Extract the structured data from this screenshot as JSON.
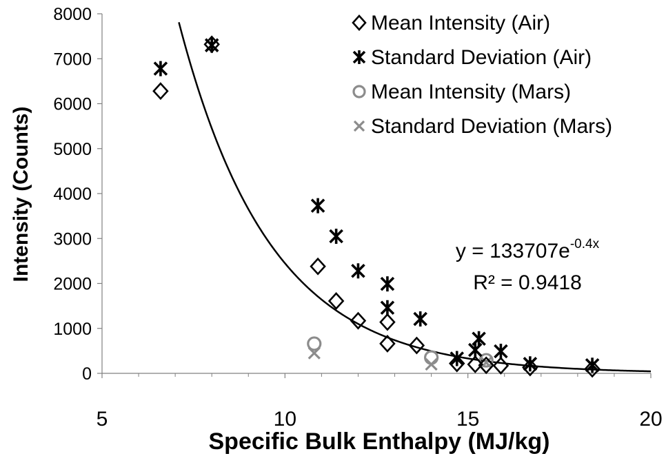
{
  "chart_data": {
    "type": "scatter",
    "title": "",
    "xlabel": "Specific Bulk Enthalpy (MJ/kg)",
    "ylabel": "Intensity (Counts)",
    "xlim": [
      5,
      20
    ],
    "ylim": [
      0,
      8000
    ],
    "x_ticks": [
      "5",
      "10",
      "15",
      "20"
    ],
    "y_ticks": [
      "0",
      "1000",
      "2000",
      "3000",
      "4000",
      "5000",
      "6000",
      "7000",
      "8000"
    ],
    "grid": false,
    "legend": "top-right",
    "series": [
      {
        "name": "Mean Intensity (Air)",
        "marker": "diamond",
        "color": "#000000",
        "points": [
          [
            6.6,
            6280
          ],
          [
            8.0,
            7320
          ],
          [
            10.9,
            2380
          ],
          [
            11.4,
            1610
          ],
          [
            12.0,
            1170
          ],
          [
            12.8,
            1140
          ],
          [
            12.8,
            660
          ],
          [
            13.6,
            620
          ],
          [
            14.7,
            220
          ],
          [
            15.2,
            200
          ],
          [
            15.5,
            180
          ],
          [
            15.9,
            170
          ],
          [
            16.7,
            130
          ],
          [
            18.4,
            100
          ]
        ]
      },
      {
        "name": "Standard Deviation (Air)",
        "marker": "asterisk",
        "color": "#000000",
        "points": [
          [
            6.6,
            6780
          ],
          [
            8.0,
            7300
          ],
          [
            10.9,
            3730
          ],
          [
            11.4,
            3050
          ],
          [
            12.0,
            2280
          ],
          [
            12.8,
            1990
          ],
          [
            12.8,
            1460
          ],
          [
            13.7,
            1210
          ],
          [
            14.7,
            330
          ],
          [
            15.2,
            520
          ],
          [
            15.3,
            770
          ],
          [
            15.9,
            490
          ],
          [
            16.7,
            210
          ],
          [
            18.4,
            180
          ]
        ]
      },
      {
        "name": "Mean Intensity (Mars)",
        "marker": "circle",
        "color": "#8c8c8c",
        "points": [
          [
            10.8,
            660
          ],
          [
            14.0,
            350
          ],
          [
            15.5,
            290
          ]
        ]
      },
      {
        "name": "Standard Deviation (Mars)",
        "marker": "x",
        "color": "#8c8c8c",
        "points": [
          [
            10.8,
            450
          ],
          [
            14.0,
            200
          ],
          [
            15.5,
            240
          ]
        ]
      }
    ],
    "trendline": {
      "type": "exponential",
      "a": 133707,
      "b": -0.4,
      "x_range": [
        7.1,
        20
      ],
      "color": "#000000"
    },
    "annotations": [
      {
        "id": "equation",
        "base": "y = 133707e",
        "sup": "-0.4x"
      },
      {
        "id": "r2",
        "text": "R² = 0.9418"
      }
    ]
  }
}
